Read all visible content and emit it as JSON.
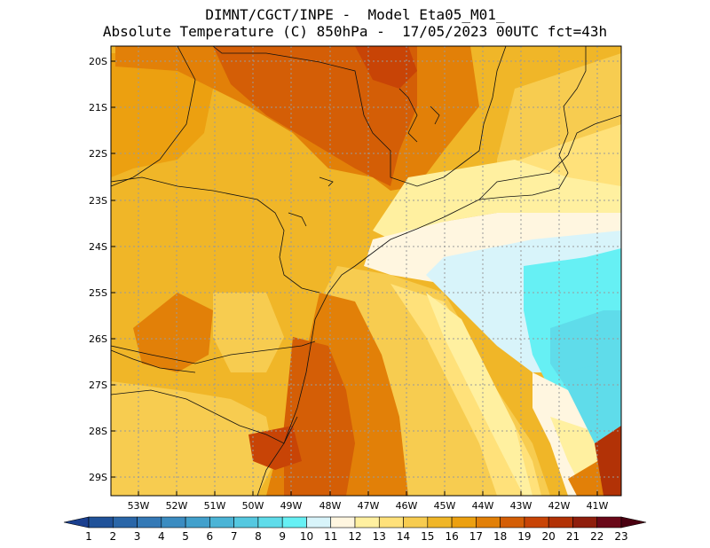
{
  "header": {
    "line1": "DIMNT/CGCT/INPE -  Model Eta05_M01_",
    "line2": "Absolute Temperature (C) 850hPa -  17/05/2023 00UTC fct=43h"
  },
  "map": {
    "lat_labels": [
      "20S",
      "21S",
      "22S",
      "23S",
      "24S",
      "25S",
      "26S",
      "27S",
      "28S",
      "29S"
    ],
    "lon_labels": [
      "53W",
      "52W",
      "51W",
      "50W",
      "49W",
      "48W",
      "47W",
      "46W",
      "45W",
      "44W",
      "43W",
      "42W",
      "41W"
    ]
  },
  "colorbar": {
    "labels": [
      "1",
      "2",
      "3",
      "4",
      "5",
      "6",
      "7",
      "8",
      "9",
      "10",
      "11",
      "12",
      "13",
      "14",
      "15",
      "16",
      "17",
      "18",
      "19",
      "20",
      "21",
      "22",
      "23"
    ],
    "colors": [
      "#1a3f8f",
      "#205299",
      "#2a66a8",
      "#3479b6",
      "#3b8cc1",
      "#42a0cc",
      "#4bb4d6",
      "#55c8e0",
      "#5fdcea",
      "#66f0f4",
      "#d8f4fa",
      "#fff6e0",
      "#fff0a0",
      "#ffe17a",
      "#f7cc50",
      "#f0b628",
      "#eca010",
      "#e28008",
      "#d45e06",
      "#c84406",
      "#b23206",
      "#8f1e0c",
      "#6a0818",
      "#4a0010"
    ]
  }
}
